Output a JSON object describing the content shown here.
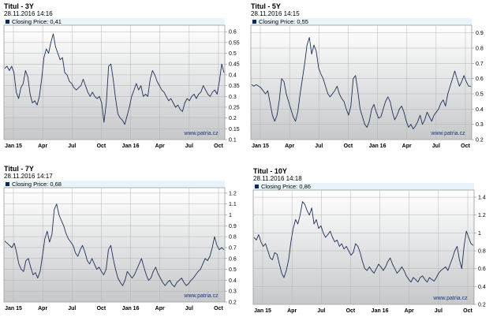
{
  "chart_data": [
    {
      "type": "line",
      "title": "Titul - 3Y",
      "timestamp": "28.11.2016 14:16",
      "legend": "Closing Price: 0,41",
      "watermark": "www.patria.cz",
      "x_ticks": [
        "Jan 15",
        "Apr",
        "Jul",
        "Oct",
        "Jan 16",
        "Apr",
        "Jul",
        "Oct"
      ],
      "y_ticks": [
        "0.1",
        "0.15",
        "0.2",
        "0.25",
        "0.3",
        "0.35",
        "0.4",
        "0.45",
        "0.5",
        "0.55",
        "0.6"
      ],
      "ylim": [
        0.1,
        0.63
      ],
      "series": [
        {
          "values": [
            0.43,
            0.44,
            0.42,
            0.44,
            0.41,
            0.32,
            0.29,
            0.34,
            0.36,
            0.42,
            0.39,
            0.31,
            0.27,
            0.28,
            0.26,
            0.3,
            0.38,
            0.48,
            0.52,
            0.5,
            0.55,
            0.59,
            0.53,
            0.5,
            0.47,
            0.48,
            0.41,
            0.4,
            0.37,
            0.36,
            0.34,
            0.33,
            0.34,
            0.35,
            0.38,
            0.35,
            0.32,
            0.3,
            0.32,
            0.3,
            0.29,
            0.3,
            0.27,
            0.18,
            0.27,
            0.44,
            0.45,
            0.38,
            0.29,
            0.22,
            0.2,
            0.19,
            0.17,
            0.21,
            0.25,
            0.3,
            0.33,
            0.36,
            0.33,
            0.35,
            0.3,
            0.31,
            0.3,
            0.38,
            0.42,
            0.4,
            0.37,
            0.35,
            0.33,
            0.32,
            0.3,
            0.28,
            0.29,
            0.27,
            0.25,
            0.26,
            0.24,
            0.23,
            0.27,
            0.29,
            0.28,
            0.3,
            0.31,
            0.29,
            0.31,
            0.32,
            0.35,
            0.33,
            0.31,
            0.3,
            0.32,
            0.33,
            0.31,
            0.37,
            0.45,
            0.41
          ]
        }
      ]
    },
    {
      "type": "line",
      "title": "Titul - 5Y",
      "timestamp": "28.11.2016 14:15",
      "legend": "Closing Price: 0,55",
      "watermark": "www.patria.cz",
      "x_ticks": [
        "Jan 15",
        "Apr",
        "Jul",
        "Oct",
        "Jan 16",
        "Apr",
        "Jul",
        "Oct"
      ],
      "y_ticks": [
        "0.2",
        "0.3",
        "0.4",
        "0.5",
        "0.6",
        "0.7",
        "0.8",
        "0.9"
      ],
      "ylim": [
        0.2,
        0.95
      ],
      "series": [
        {
          "values": [
            0.56,
            0.55,
            0.56,
            0.55,
            0.54,
            0.52,
            0.5,
            0.52,
            0.44,
            0.36,
            0.32,
            0.36,
            0.46,
            0.6,
            0.58,
            0.5,
            0.45,
            0.4,
            0.35,
            0.32,
            0.38,
            0.5,
            0.6,
            0.7,
            0.82,
            0.87,
            0.76,
            0.82,
            0.78,
            0.67,
            0.63,
            0.6,
            0.55,
            0.5,
            0.48,
            0.5,
            0.52,
            0.55,
            0.5,
            0.47,
            0.45,
            0.4,
            0.36,
            0.42,
            0.6,
            0.62,
            0.52,
            0.4,
            0.35,
            0.3,
            0.28,
            0.32,
            0.4,
            0.43,
            0.38,
            0.34,
            0.35,
            0.4,
            0.45,
            0.48,
            0.45,
            0.38,
            0.33,
            0.36,
            0.4,
            0.42,
            0.38,
            0.32,
            0.28,
            0.3,
            0.27,
            0.29,
            0.32,
            0.36,
            0.3,
            0.33,
            0.38,
            0.35,
            0.32,
            0.36,
            0.38,
            0.4,
            0.44,
            0.46,
            0.42,
            0.5,
            0.55,
            0.6,
            0.65,
            0.6,
            0.55,
            0.58,
            0.62,
            0.58,
            0.55,
            0.55
          ]
        }
      ]
    },
    {
      "type": "line",
      "title": "Titul - 7Y",
      "timestamp": "28.11.2016 14:17",
      "legend": "Closing Price: 0,68",
      "watermark": "www.patria.cz",
      "x_ticks": [
        "Jan 15",
        "Apr",
        "Jul",
        "Oct",
        "Jan 16",
        "Apr",
        "Jul",
        "Oct"
      ],
      "y_ticks": [
        "0.2",
        "0.3",
        "0.4",
        "0.5",
        "0.6",
        "0.7",
        "0.8",
        "0.9",
        "1",
        "1.1",
        "1.2"
      ],
      "ylim": [
        0.2,
        1.25
      ],
      "series": [
        {
          "values": [
            0.76,
            0.74,
            0.72,
            0.7,
            0.74,
            0.66,
            0.55,
            0.5,
            0.48,
            0.58,
            0.6,
            0.52,
            0.45,
            0.47,
            0.42,
            0.48,
            0.62,
            0.78,
            0.85,
            0.75,
            0.82,
            1.05,
            1.1,
            1.0,
            0.95,
            0.9,
            0.83,
            0.78,
            0.75,
            0.72,
            0.65,
            0.62,
            0.68,
            0.72,
            0.66,
            0.58,
            0.55,
            0.6,
            0.55,
            0.5,
            0.52,
            0.48,
            0.45,
            0.5,
            0.68,
            0.72,
            0.6,
            0.5,
            0.42,
            0.38,
            0.35,
            0.4,
            0.48,
            0.45,
            0.42,
            0.45,
            0.5,
            0.55,
            0.6,
            0.52,
            0.45,
            0.4,
            0.42,
            0.48,
            0.52,
            0.46,
            0.42,
            0.38,
            0.35,
            0.38,
            0.4,
            0.36,
            0.34,
            0.38,
            0.4,
            0.42,
            0.38,
            0.35,
            0.37,
            0.4,
            0.42,
            0.45,
            0.48,
            0.5,
            0.55,
            0.6,
            0.58,
            0.62,
            0.7,
            0.8,
            0.72,
            0.68,
            0.7,
            0.68
          ]
        }
      ]
    },
    {
      "type": "line",
      "title": "Titul - 10Y",
      "timestamp": "28.11.2016 14:18",
      "legend": "Closing Price: 0,86",
      "watermark": "www.patria.cz",
      "x_ticks": [
        "Jan 15",
        "Apr",
        "Jul",
        "Oct",
        "Jan 16",
        "Apr",
        "Jul",
        "Oct"
      ],
      "y_ticks": [
        "0.2",
        "0.4",
        "0.6",
        "0.8",
        "1",
        "1.2",
        "1.4"
      ],
      "ylim": [
        0.2,
        1.48
      ],
      "series": [
        {
          "values": [
            0.95,
            0.92,
            0.98,
            0.9,
            0.85,
            0.88,
            0.8,
            0.72,
            0.7,
            0.78,
            0.76,
            0.65,
            0.55,
            0.5,
            0.58,
            0.7,
            0.9,
            1.05,
            1.15,
            1.1,
            1.2,
            1.35,
            1.32,
            1.25,
            1.2,
            1.28,
            1.1,
            1.15,
            1.05,
            1.08,
            1.0,
            0.95,
            0.98,
            1.02,
            0.95,
            0.9,
            0.92,
            0.85,
            0.88,
            0.82,
            0.85,
            0.8,
            0.75,
            0.78,
            0.88,
            0.85,
            0.78,
            0.68,
            0.6,
            0.58,
            0.62,
            0.58,
            0.55,
            0.6,
            0.65,
            0.62,
            0.58,
            0.62,
            0.68,
            0.72,
            0.65,
            0.6,
            0.55,
            0.58,
            0.62,
            0.58,
            0.52,
            0.48,
            0.45,
            0.5,
            0.48,
            0.45,
            0.5,
            0.52,
            0.48,
            0.45,
            0.5,
            0.48,
            0.46,
            0.5,
            0.55,
            0.58,
            0.6,
            0.62,
            0.58,
            0.65,
            0.72,
            0.8,
            0.85,
            0.7,
            0.6,
            0.85,
            1.02,
            0.95,
            0.88,
            0.86
          ]
        }
      ]
    }
  ]
}
